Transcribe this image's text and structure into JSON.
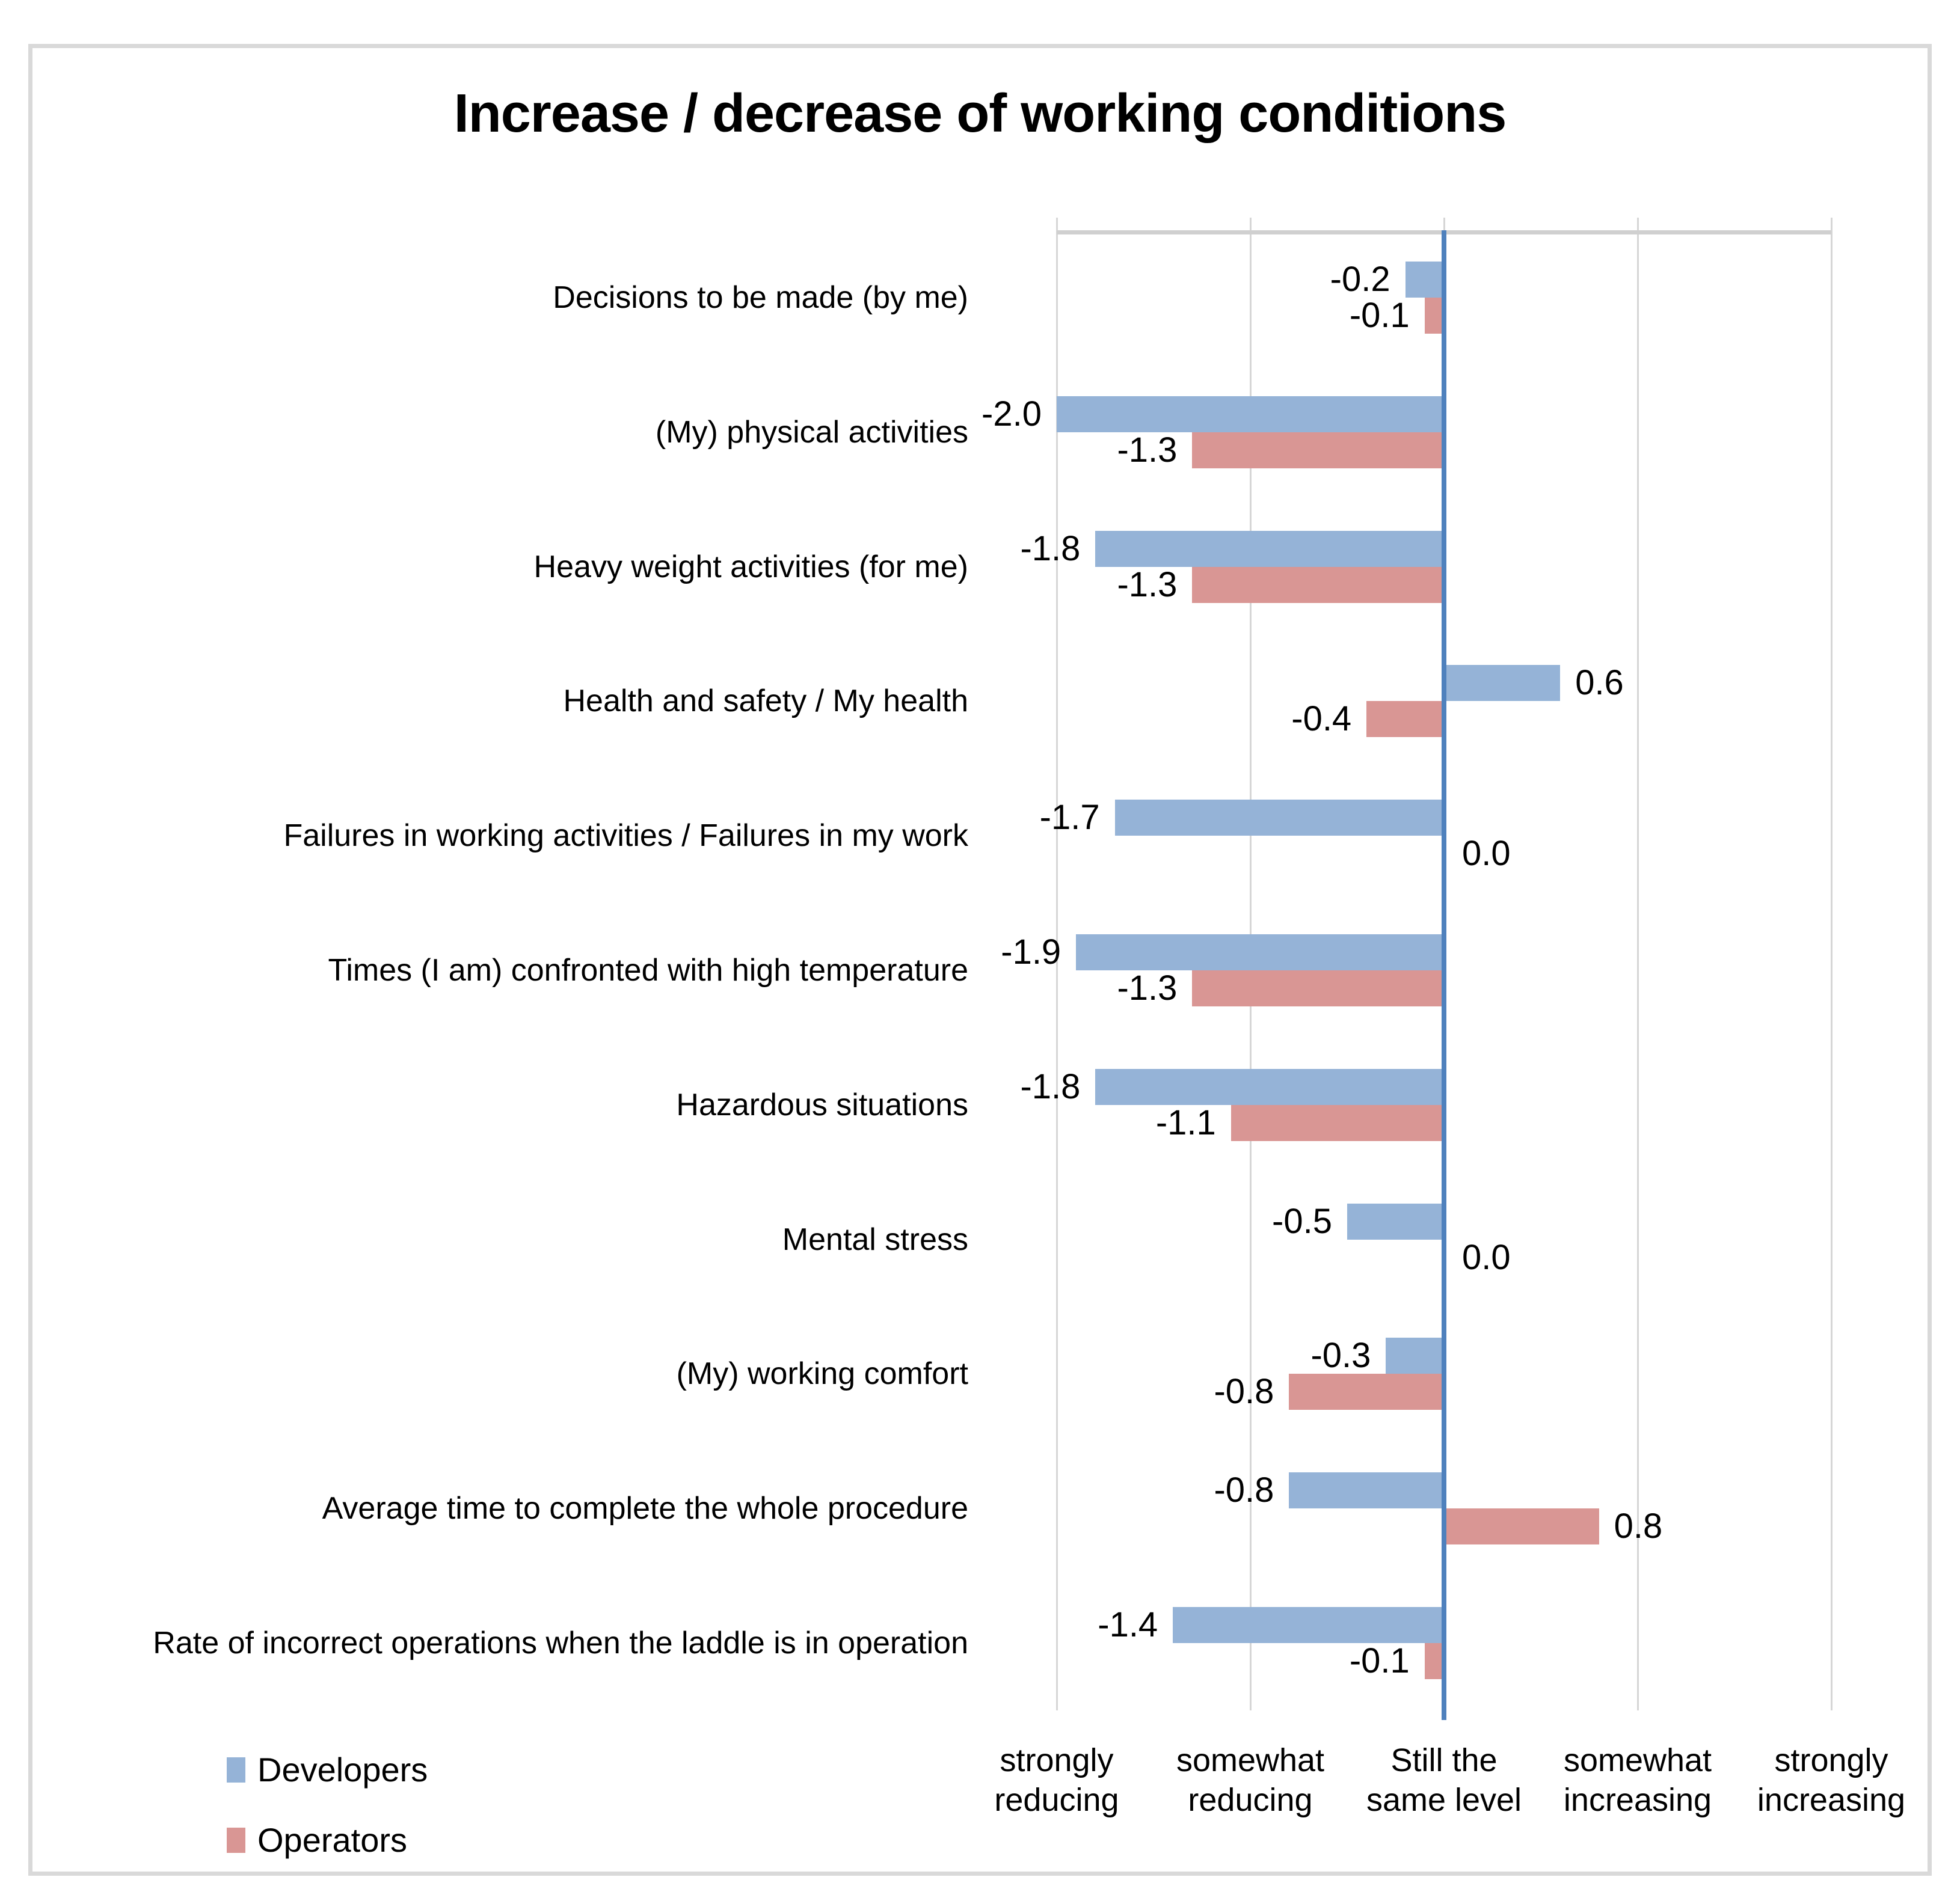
{
  "title": "Increase / decrease of working conditions",
  "legend": {
    "position": "bottom-left",
    "items": [
      {
        "label": "Developers",
        "color": "#95B3D7"
      },
      {
        "label": "Operators",
        "color": "#D99694"
      }
    ]
  },
  "colors": {
    "developers_bar": "#95B3D7",
    "operators_bar": "#D99694",
    "zero_axis_line": "#4F81BD",
    "gridline": "#D6D6D6",
    "plot_top_line": "#D0D0D0",
    "chart_border": "#D9D9D9",
    "text": "#000000"
  },
  "x_axis": {
    "min": -2,
    "max": 2,
    "tick_lines": [
      [
        "strongly",
        "reducing"
      ],
      [
        "somewhat",
        "reducing"
      ],
      [
        "Still the",
        "same level"
      ],
      [
        "somewhat",
        "increasing"
      ],
      [
        "strongly",
        "increasing"
      ]
    ]
  },
  "chart_data": {
    "type": "bar",
    "orientation": "horizontal",
    "title": "Increase / decrease of working conditions",
    "xlim": [
      -2,
      2
    ],
    "grid": true,
    "legend_position": "bottom-left",
    "xtick_labels": [
      "strongly reducing",
      "somewhat reducing",
      "Still the same level",
      "somewhat increasing",
      "strongly increasing"
    ],
    "categories": [
      "Decisions to be made (by me)",
      "(My) physical activities",
      "Heavy weight activities (for me)",
      "Health and safety / My health",
      "Failures in working activities / Failures in my work",
      "Times (I am) confronted with high temperature",
      "Hazardous situations",
      "Mental stress",
      "(My) working comfort",
      "Average time to complete the whole procedure",
      "Rate of incorrect operations when the laddle is in operation"
    ],
    "series": [
      {
        "name": "Developers",
        "color": "#95B3D7",
        "values": [
          -0.2,
          -2.0,
          -1.8,
          0.6,
          -1.7,
          -1.9,
          -1.8,
          -0.5,
          -0.3,
          -0.8,
          -1.4
        ]
      },
      {
        "name": "Operators",
        "color": "#D99694",
        "values": [
          -0.1,
          -1.3,
          -1.3,
          -0.4,
          0.0,
          -1.3,
          -1.1,
          0.0,
          -0.8,
          0.8,
          -0.1
        ]
      }
    ]
  }
}
